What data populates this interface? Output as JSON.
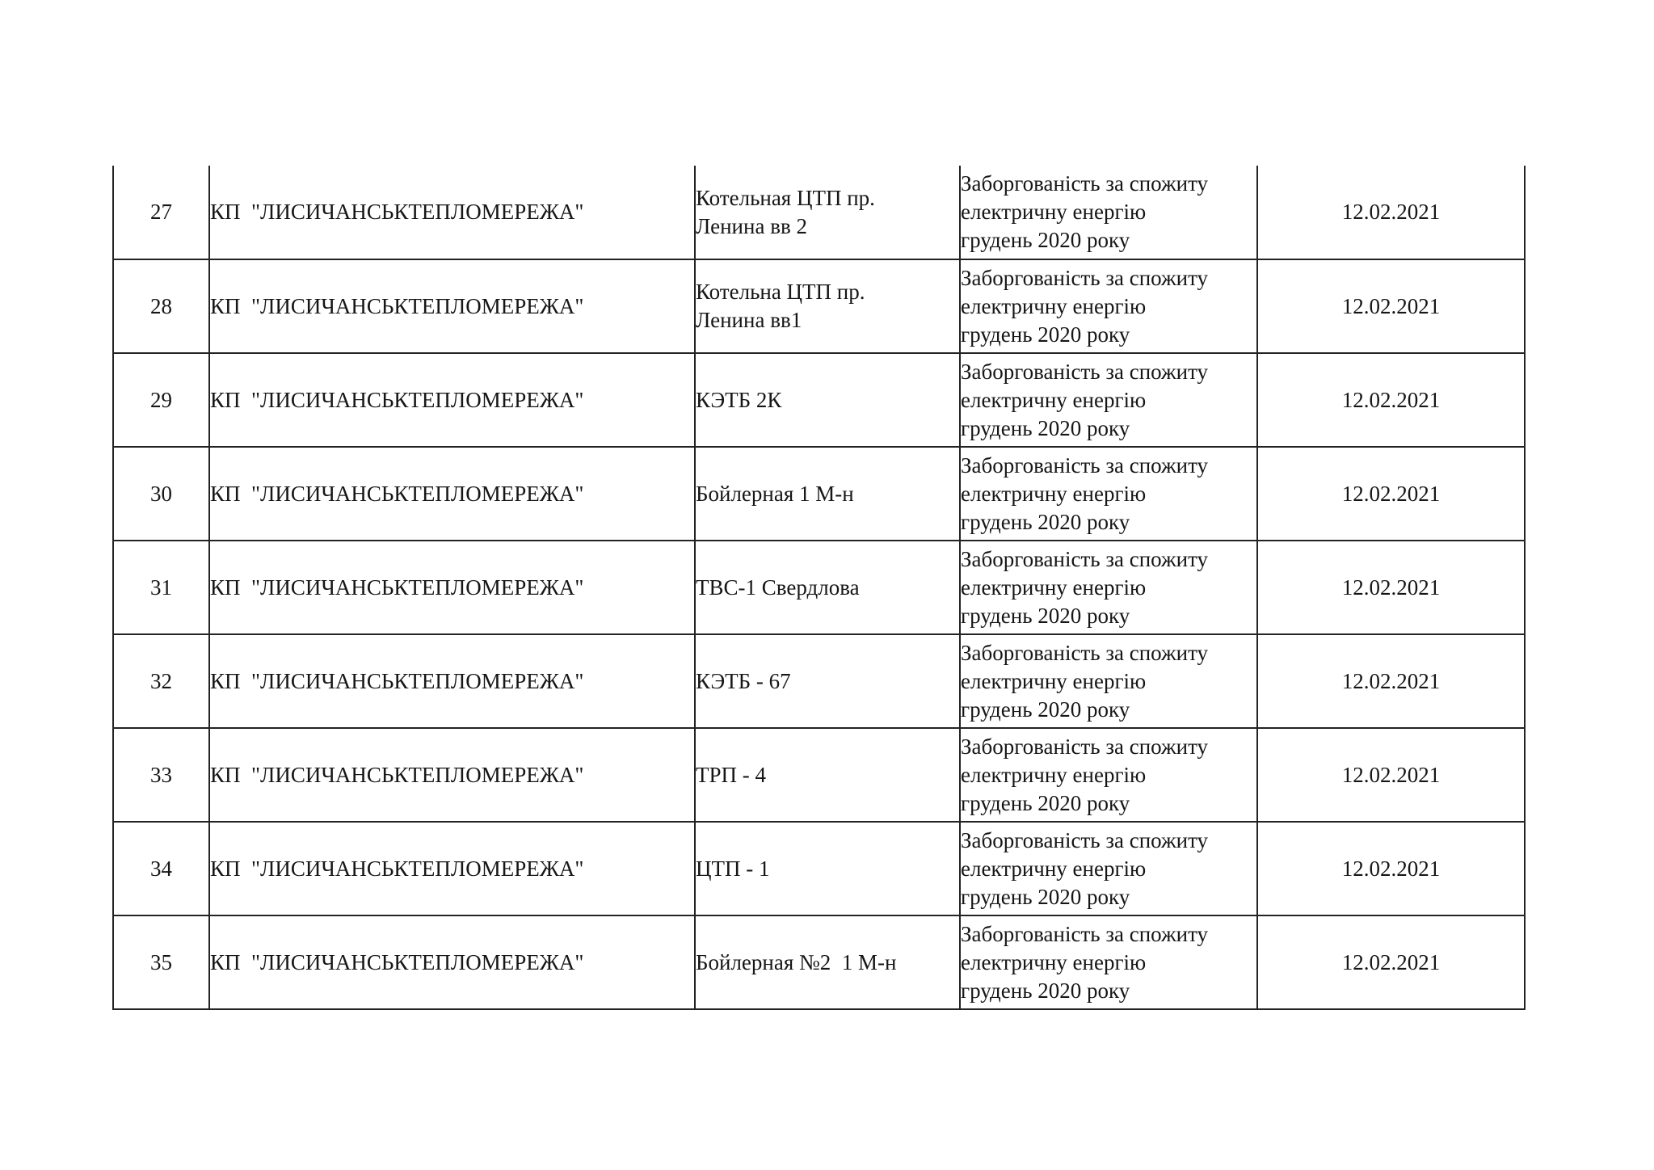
{
  "table": {
    "rows": [
      {
        "num": "27",
        "company": "КП  \"ЛИСИЧАНСЬКТЕПЛОМЕРЕЖА\"",
        "object": "Котельная ЦТП пр.\nЛенина вв 2",
        "reason": "Заборгованість за спожиту\nелектричну енергію\nгрудень 2020 року",
        "date": "12.02.2021"
      },
      {
        "num": "28",
        "company": "КП  \"ЛИСИЧАНСЬКТЕПЛОМЕРЕЖА\"",
        "object": "Котельна ЦТП пр.\nЛенина вв1",
        "reason": "Заборгованість за спожиту\nелектричну енергію\nгрудень 2020 року",
        "date": "12.02.2021"
      },
      {
        "num": "29",
        "company": "КП  \"ЛИСИЧАНСЬКТЕПЛОМЕРЕЖА\"",
        "object": "КЭТБ 2К",
        "reason": "Заборгованість за спожиту\nелектричну енергію\nгрудень 2020 року",
        "date": "12.02.2021"
      },
      {
        "num": "30",
        "company": "КП  \"ЛИСИЧАНСЬКТЕПЛОМЕРЕЖА\"",
        "object": "Бойлерная 1 М-н",
        "reason": "Заборгованість за спожиту\nелектричну енергію\nгрудень 2020 року",
        "date": "12.02.2021"
      },
      {
        "num": "31",
        "company": "КП  \"ЛИСИЧАНСЬКТЕПЛОМЕРЕЖА\"",
        "object": "ТВС-1 Свердлова",
        "reason": "Заборгованість за спожиту\nелектричну енергію\nгрудень 2020 року",
        "date": "12.02.2021"
      },
      {
        "num": "32",
        "company": "КП  \"ЛИСИЧАНСЬКТЕПЛОМЕРЕЖА\"",
        "object": "КЭТБ - 67",
        "reason": "Заборгованість за спожиту\nелектричну енергію\nгрудень 2020 року",
        "date": "12.02.2021"
      },
      {
        "num": "33",
        "company": "КП  \"ЛИСИЧАНСЬКТЕПЛОМЕРЕЖА\"",
        "object": "ТРП - 4",
        "reason": "Заборгованість за спожиту\nелектричну енергію\nгрудень 2020 року",
        "date": "12.02.2021"
      },
      {
        "num": "34",
        "company": "КП  \"ЛИСИЧАНСЬКТЕПЛОМЕРЕЖА\"",
        "object": "ЦТП - 1",
        "reason": "Заборгованість за спожиту\nелектричну енергію\nгрудень 2020 року",
        "date": "12.02.2021"
      },
      {
        "num": "35",
        "company": "КП  \"ЛИСИЧАНСЬКТЕПЛОМЕРЕЖА\"",
        "object": "Бойлерная №2  1 М-н",
        "reason": "Заборгованість за спожиту\nелектричну енергію\nгрудень 2020 року",
        "date": "12.02.2021"
      }
    ],
    "border_color": "#232323",
    "text_color": "#161616"
  }
}
